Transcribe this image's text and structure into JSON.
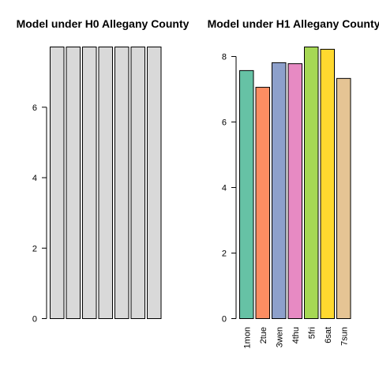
{
  "chart_data": [
    {
      "type": "bar",
      "title": "Model under H0 Allegany County",
      "categories": [
        "1mon",
        "2tue",
        "3wen",
        "4thu",
        "5fri",
        "6sat",
        "7sun"
      ],
      "show_category_labels": false,
      "values": [
        7.71,
        7.71,
        7.71,
        7.71,
        7.71,
        7.71,
        7.71
      ],
      "colors": [
        "#d9d9d9",
        "#d9d9d9",
        "#d9d9d9",
        "#d9d9d9",
        "#d9d9d9",
        "#d9d9d9",
        "#d9d9d9"
      ],
      "yticks": [
        0,
        2,
        4,
        6
      ],
      "ylim": [
        0,
        7.71
      ]
    },
    {
      "type": "bar",
      "title": "Model under H1 Allegany County",
      "categories": [
        "1mon",
        "2tue",
        "3wen",
        "4thu",
        "5fri",
        "6sat",
        "7sun"
      ],
      "show_category_labels": true,
      "values": [
        7.57,
        7.06,
        7.81,
        7.78,
        8.29,
        8.22,
        7.33
      ],
      "colors": [
        "#66c2a5",
        "#fc8d62",
        "#8da0cb",
        "#e78ac3",
        "#a6d854",
        "#ffd92f",
        "#e5c494"
      ],
      "yticks": [
        0,
        2,
        4,
        6,
        8
      ],
      "ylim": [
        0,
        8.29
      ]
    }
  ]
}
